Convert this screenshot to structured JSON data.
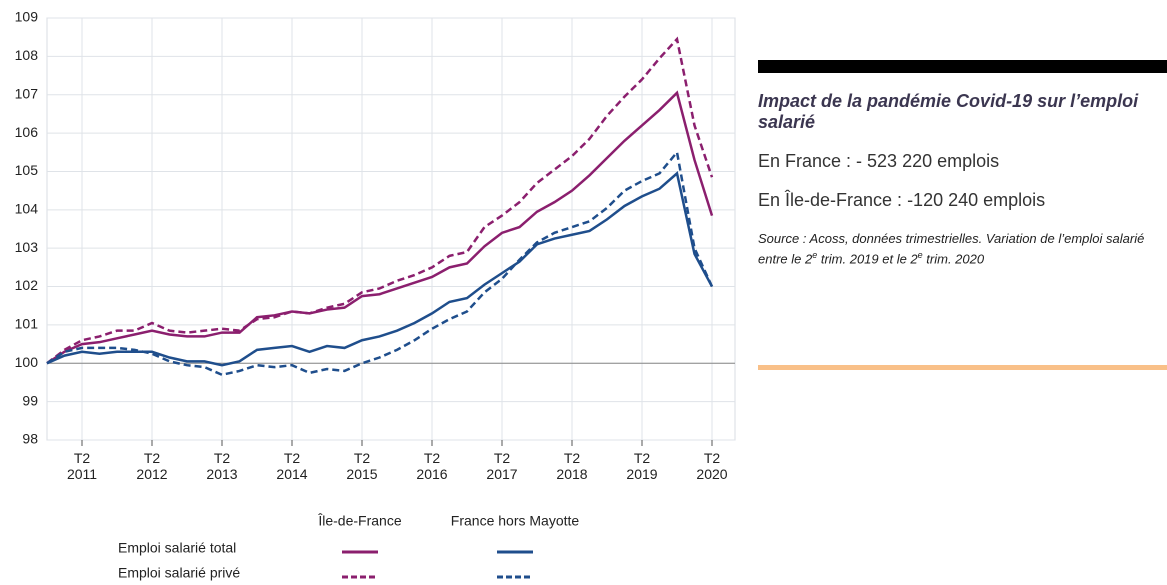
{
  "chart_data": {
    "type": "line",
    "categories": [
      null,
      null,
      "T2\n2011",
      null,
      null,
      null,
      "T2\n2012",
      null,
      null,
      null,
      "T2\n2013",
      null,
      null,
      null,
      "T2\n2014",
      null,
      null,
      null,
      "T2\n2015",
      null,
      null,
      null,
      "T2\n2016",
      null,
      null,
      null,
      "T2\n2017",
      null,
      null,
      null,
      "T2\n2018",
      null,
      null,
      null,
      "T2\n2019",
      null,
      null,
      null,
      "T2\n2020"
    ],
    "ylim": [
      98,
      109
    ],
    "yticks": [
      98,
      99,
      100,
      101,
      102,
      103,
      104,
      105,
      106,
      107,
      108,
      109
    ],
    "grid": true,
    "reference_line": 100,
    "legend": {
      "columns": [
        "Île-de-France",
        "France hors Mayotte"
      ],
      "rows": [
        "Emploi salarié total",
        "Emploi salarié privé"
      ]
    },
    "series": [
      {
        "color": "#8b1f6e",
        "dashed": false,
        "values": [
          100,
          100.3,
          100.5,
          100.55,
          100.65,
          100.75,
          100.85,
          100.75,
          100.7,
          100.7,
          100.8,
          100.8,
          101.2,
          101.25,
          101.35,
          101.3,
          101.4,
          101.45,
          101.75,
          101.8,
          101.95,
          102.1,
          102.25,
          102.5,
          102.6,
          103.05,
          103.4,
          103.55,
          103.95,
          104.2,
          104.5,
          104.9,
          105.35,
          105.8,
          106.2,
          106.6,
          107.05,
          105.3,
          103.85
        ]
      },
      {
        "color": "#8b1f6e",
        "dashed": true,
        "values": [
          100,
          100.35,
          100.6,
          100.7,
          100.85,
          100.85,
          101.05,
          100.85,
          100.8,
          100.85,
          100.9,
          100.85,
          101.15,
          101.2,
          101.35,
          101.3,
          101.45,
          101.55,
          101.85,
          101.95,
          102.15,
          102.3,
          102.5,
          102.8,
          102.9,
          103.55,
          103.85,
          104.2,
          104.7,
          105.05,
          105.4,
          105.85,
          106.45,
          106.95,
          107.4,
          107.95,
          108.45,
          106.2,
          104.85
        ]
      },
      {
        "color": "#1f4e8c",
        "dashed": false,
        "values": [
          100,
          100.2,
          100.3,
          100.25,
          100.3,
          100.3,
          100.3,
          100.15,
          100.05,
          100.05,
          99.95,
          100.05,
          100.35,
          100.4,
          100.45,
          100.3,
          100.45,
          100.4,
          100.6,
          100.7,
          100.85,
          101.05,
          101.3,
          101.6,
          101.7,
          102.05,
          102.35,
          102.65,
          103.1,
          103.25,
          103.35,
          103.45,
          103.75,
          104.1,
          104.35,
          104.55,
          104.95,
          102.85,
          102.0
        ]
      },
      {
        "color": "#1f4e8c",
        "dashed": true,
        "values": [
          100,
          100.3,
          100.4,
          100.4,
          100.4,
          100.35,
          100.25,
          100.05,
          99.95,
          99.9,
          99.7,
          99.8,
          99.95,
          99.9,
          99.95,
          99.75,
          99.85,
          99.8,
          100.0,
          100.15,
          100.35,
          100.6,
          100.9,
          101.15,
          101.35,
          101.85,
          102.2,
          102.7,
          103.15,
          103.4,
          103.55,
          103.7,
          104.05,
          104.5,
          104.75,
          104.95,
          105.5,
          103.0,
          102.0
        ]
      }
    ]
  },
  "panel": {
    "title": "Impact de la pandémie Covid-19 sur l’emploi salarié",
    "lines": [
      "En France : - 523 220 emplois",
      "En Île-de-France : -120 240 emplois"
    ],
    "source": [
      "Source : Acoss, données trimestrielles. Variation de l’emploi salarié entre le 2",
      "e",
      " trim. 2019 et le 2",
      "e",
      " trim. 2020"
    ]
  }
}
